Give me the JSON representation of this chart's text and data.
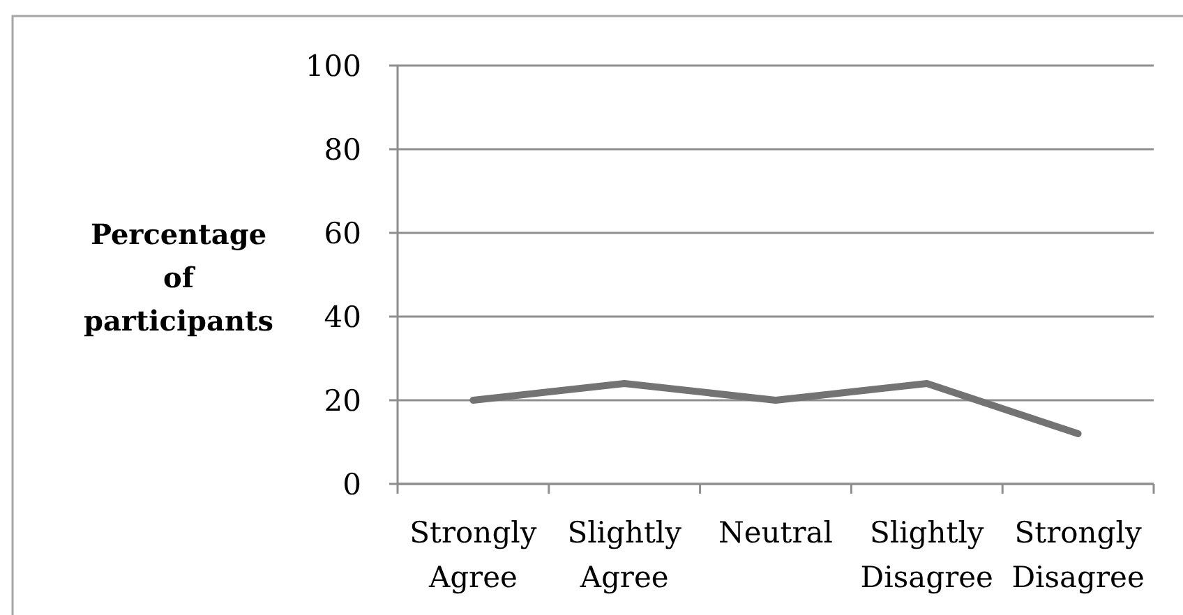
{
  "chart_data": {
    "type": "line",
    "ylabel": "Percentage of participants",
    "categories": [
      "Strongly Agree",
      "Slightly Agree",
      "Neutral",
      "Slightly Disagree",
      "Strongly Disagree"
    ],
    "series": [
      {
        "color": "#737373",
        "values": [
          20,
          24,
          20,
          24,
          12
        ]
      }
    ],
    "ylim": [
      0,
      100
    ],
    "yticks": [
      0,
      20,
      40,
      60,
      80,
      100
    ],
    "grid": "y",
    "line_style": "solid"
  }
}
